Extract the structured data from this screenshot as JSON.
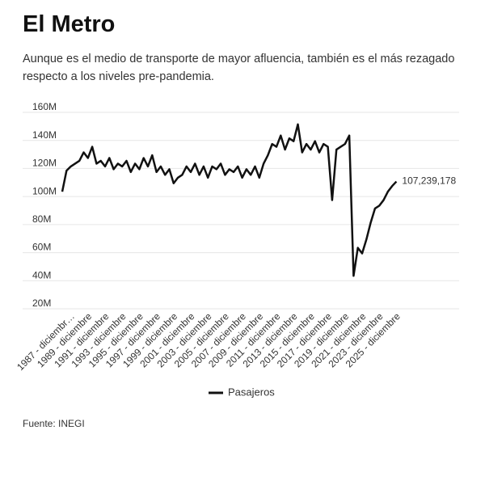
{
  "header": {
    "title": "El Metro",
    "subtitle": "Aunque es el medio de transporte de mayor afluencia, también es el más rezagado respecto a los niveles pre-pandemia."
  },
  "footer": {
    "source": "Fuente: INEGI"
  },
  "chart_data": {
    "type": "line",
    "categories": [
      null,
      null,
      null,
      "1987 - diciembr…",
      null,
      null,
      null,
      "1989 - diciembre",
      null,
      null,
      null,
      "1991 - diciembre",
      null,
      null,
      null,
      "1993 - diciembre",
      null,
      null,
      null,
      "1995 - diciembre",
      null,
      null,
      null,
      "1997 - diciembre",
      null,
      null,
      null,
      "1999 - diciembre",
      null,
      null,
      null,
      "2001 - diciembre",
      null,
      null,
      null,
      "2003 - diciembre",
      null,
      null,
      null,
      "2005 - diciembre",
      null,
      null,
      null,
      "2007 - diciembre",
      null,
      null,
      null,
      "2009 - diciembre",
      null,
      null,
      null,
      "2011 - diciembre",
      null,
      null,
      null,
      "2013 - diciembre",
      null,
      null,
      null,
      "2015 - diciembre",
      null,
      null,
      null,
      "2017 - diciembre",
      null,
      null,
      null,
      "2019 - diciembre",
      null,
      null,
      null,
      "2021 - diciembre",
      null,
      null,
      null,
      "2023 - diciembre",
      null,
      null,
      null,
      "2025 - diciembre"
    ],
    "series": [
      {
        "name": "Pasajeros",
        "color": "#111111",
        "values": [
          100000000,
          115000000,
          118000000,
          120000000,
          122000000,
          128000000,
          124000000,
          132000000,
          120000000,
          122000000,
          118000000,
          124000000,
          116000000,
          120000000,
          118000000,
          122000000,
          114000000,
          120000000,
          116000000,
          124000000,
          118000000,
          126000000,
          114000000,
          118000000,
          112000000,
          116000000,
          106000000,
          110000000,
          112000000,
          118000000,
          114000000,
          120000000,
          112000000,
          118000000,
          110000000,
          118000000,
          116000000,
          120000000,
          112000000,
          116000000,
          114000000,
          118000000,
          110000000,
          116000000,
          112000000,
          118000000,
          110000000,
          120000000,
          126000000,
          134000000,
          132000000,
          140000000,
          130000000,
          138000000,
          136000000,
          148000000,
          128000000,
          134000000,
          130000000,
          136000000,
          128000000,
          134000000,
          132000000,
          94000000,
          130000000,
          132000000,
          134000000,
          140000000,
          40000000,
          60000000,
          56000000,
          66000000,
          78000000,
          88000000,
          90000000,
          94000000,
          100000000,
          104000000,
          107239178,
          null
        ],
        "value_labels": [
          null,
          null,
          null,
          null,
          null,
          null,
          null,
          null,
          null,
          null,
          null,
          null,
          null,
          null,
          null,
          null,
          null,
          null,
          null,
          null,
          null,
          null,
          null,
          null,
          null,
          null,
          null,
          null,
          null,
          null,
          null,
          null,
          null,
          null,
          null,
          null,
          null,
          null,
          null,
          null,
          null,
          null,
          null,
          null,
          null,
          null,
          null,
          null,
          null,
          null,
          null,
          null,
          null,
          null,
          null,
          null,
          null,
          null,
          null,
          null,
          null,
          null,
          null,
          null,
          null,
          null,
          null,
          null,
          null,
          null,
          null,
          null,
          null,
          null,
          null,
          null,
          null,
          null,
          "107,239,178",
          null
        ]
      }
    ],
    "ylim": [
      20000000,
      160000000
    ],
    "yticks": [
      {
        "value": 20000000,
        "label": "20M"
      },
      {
        "value": 40000000,
        "label": "40M"
      },
      {
        "value": 60000000,
        "label": "60M"
      },
      {
        "value": 80000000,
        "label": "80M"
      },
      {
        "value": 100000000,
        "label": "100M"
      },
      {
        "value": 120000000,
        "label": "120M"
      },
      {
        "value": 140000000,
        "label": "140M"
      },
      {
        "value": 160000000,
        "label": "160M"
      }
    ],
    "grid": true,
    "legend": "bottom"
  }
}
